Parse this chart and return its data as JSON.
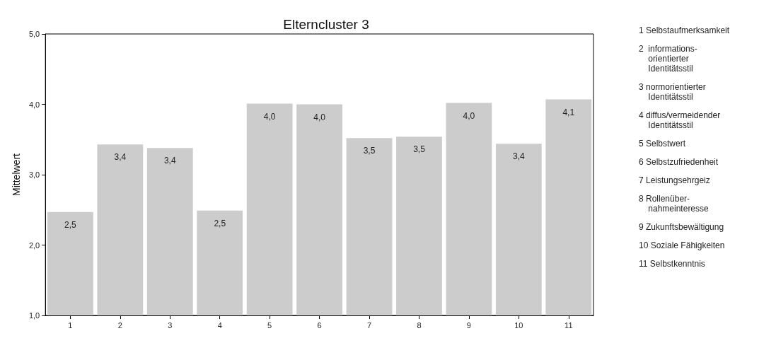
{
  "chart_data": {
    "type": "bar",
    "title": "Elterncluster 3",
    "ylabel": "Mittelwert",
    "categories": [
      "1",
      "2",
      "3",
      "4",
      "5",
      "6",
      "7",
      "8",
      "9",
      "10",
      "11"
    ],
    "values": [
      2.47,
      3.43,
      3.38,
      2.49,
      4.01,
      4.0,
      3.52,
      3.54,
      4.02,
      3.44,
      4.07
    ],
    "value_labels": [
      "2,5",
      "3,4",
      "3,4",
      "2,5",
      "4,0",
      "4,0",
      "3,5",
      "3,5",
      "4,0",
      "3,4",
      "4,1"
    ],
    "color": "#cccccc",
    "ylim": [
      1,
      5
    ],
    "yticks": [
      {
        "value": 1,
        "label": "1,0"
      },
      {
        "value": 2,
        "label": "2,0"
      },
      {
        "value": 3,
        "label": "3,0"
      },
      {
        "value": 4,
        "label": "4,0"
      },
      {
        "value": 5,
        "label": "5,0"
      }
    ],
    "grid": false,
    "annotations": [
      "1 Selbstaufmerksamkeit",
      "2  informations-\n    orientierter\n    Identitätsstil",
      "3 normorientierter\n    Identitätsstil",
      "4 diffus/vermeidender\n    Identitätsstil",
      "5 Selbstwert",
      "6 Selbstzufriedenheit",
      "7 Leistungsehrgeiz",
      "8 Rollenüber-\n    nahmeinteresse",
      "9 Zukunftsbewältigung",
      "10 Soziale Fähigkeiten",
      "11 Selbstkenntnis"
    ]
  }
}
